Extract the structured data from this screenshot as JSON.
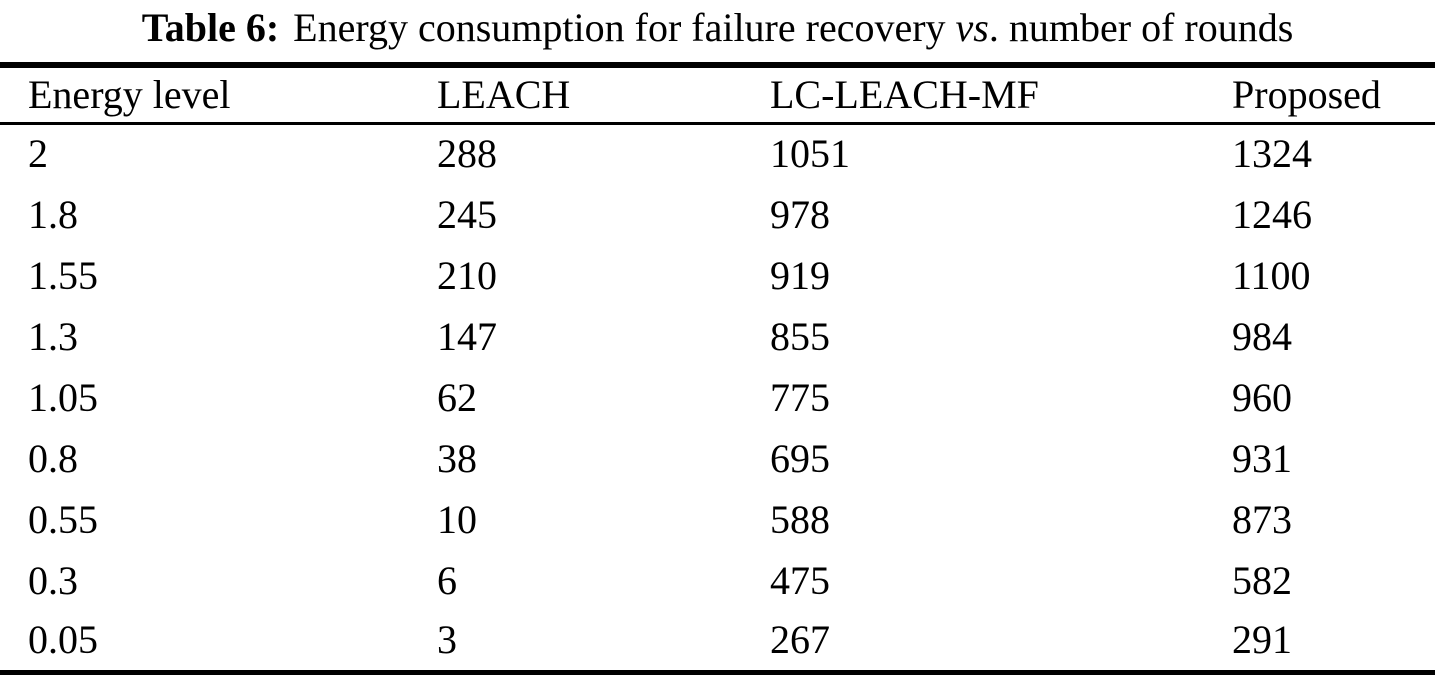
{
  "caption": {
    "label": "Table 6:",
    "text_before_vs": "Energy consumption for failure recovery",
    "vs": "vs",
    "text_after_vs": ". number of rounds"
  },
  "table": {
    "columns": [
      "Energy level",
      "LEACH",
      "LC-LEACH-MF",
      "Proposed"
    ],
    "column_keys": [
      "energy-level",
      "leach",
      "lc-leach-mf",
      "proposed"
    ],
    "rows": [
      [
        "2",
        "288",
        "1051",
        "1324"
      ],
      [
        "1.8",
        "245",
        "978",
        "1246"
      ],
      [
        "1.55",
        "210",
        "919",
        "1100"
      ],
      [
        "1.3",
        "147",
        "855",
        "984"
      ],
      [
        "1.05",
        "62",
        "775",
        "960"
      ],
      [
        "0.8",
        "38",
        "695",
        "931"
      ],
      [
        "0.55",
        "10",
        "588",
        "873"
      ],
      [
        "0.3",
        "6",
        "475",
        "582"
      ],
      [
        "0.05",
        "3",
        "267",
        "291"
      ]
    ]
  },
  "chart_data": {
    "type": "table",
    "title": "Table 6: Energy consumption for failure recovery vs. number of rounds",
    "columns": [
      "Energy level",
      "LEACH",
      "LC-LEACH-MF",
      "Proposed"
    ],
    "categories": [
      2,
      1.8,
      1.55,
      1.3,
      1.05,
      0.8,
      0.55,
      0.3,
      0.05
    ],
    "series": [
      {
        "name": "LEACH",
        "values": [
          288,
          245,
          210,
          147,
          62,
          38,
          10,
          6,
          3
        ]
      },
      {
        "name": "LC-LEACH-MF",
        "values": [
          1051,
          978,
          919,
          855,
          775,
          695,
          588,
          475,
          267
        ]
      },
      {
        "name": "Proposed",
        "values": [
          1324,
          1246,
          1100,
          984,
          960,
          931,
          873,
          582,
          291
        ]
      }
    ]
  },
  "colors": {
    "text": "#000000",
    "background": "#ffffff",
    "rule": "#000000"
  }
}
